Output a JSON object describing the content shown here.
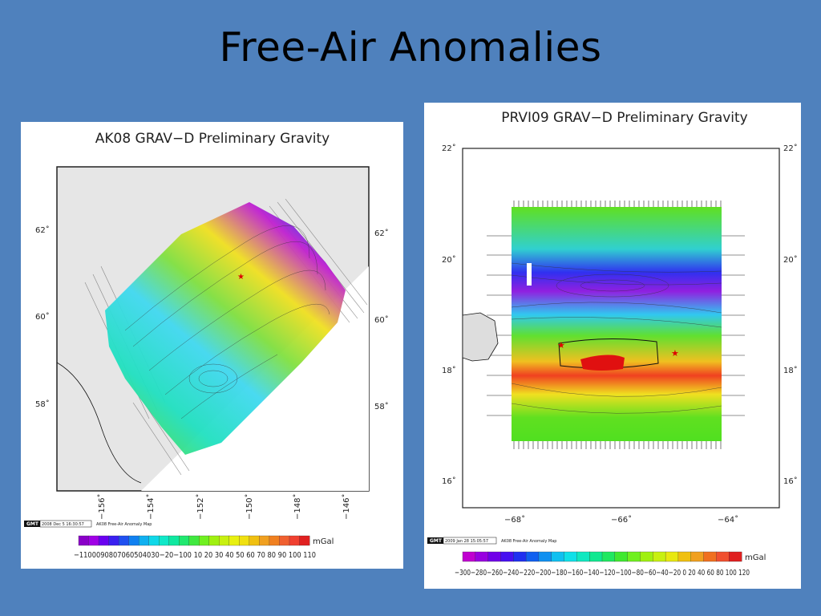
{
  "slide": {
    "title": "Free-Air Anomalies"
  },
  "ak08": {
    "title": "AK08 GRAV−D Preliminary Gravity",
    "lat_ticks": [
      "62˚",
      "60˚",
      "58˚"
    ],
    "lon_ticks": [
      "−156˚",
      "−154˚",
      "−152˚",
      "−150˚",
      "−148˚",
      "−146˚"
    ],
    "gmt_logo": "GMT",
    "timestamp": "2008 Dec 5 16:30:57",
    "map_label": "AK08 Free-Air Anomaly Map",
    "colorbar_unit": "mGal",
    "colorbar_labels": "−1100090807060504030−20−100 10 20 30 40 50 60 70 80 90 100 110",
    "colorbar_colors": [
      "#8a00c8",
      "#a000e6",
      "#6a00f0",
      "#3a20f0",
      "#2050f0",
      "#1080f0",
      "#10b0f0",
      "#10d8e8",
      "#10e8c8",
      "#10e8a0",
      "#20e870",
      "#40e840",
      "#70f020",
      "#a0f010",
      "#c8f010",
      "#e8f010",
      "#f0e010",
      "#f0c010",
      "#f0a020",
      "#f08020",
      "#f06030",
      "#f04030",
      "#e02020"
    ]
  },
  "prvi09": {
    "title": "PRVI09 GRAV−D Preliminary Gravity",
    "lat_ticks": [
      "22˚",
      "20˚",
      "18˚",
      "16˚"
    ],
    "lon_ticks": [
      "−68˚",
      "−66˚",
      "−64˚"
    ],
    "gmt_logo": "GMT",
    "timestamp": "2009 Jan 28 15:05:57",
    "map_label": "AK08 Free-Air Anomaly Map",
    "colorbar_unit": "mGal",
    "colorbar_labels": "−300−280−260−240−220−200−180−160−140−120−100−80−60−40−20 0 20 40 60 80 100 120",
    "colorbar_colors": [
      "#c000d0",
      "#9800e0",
      "#7000e8",
      "#4810f0",
      "#2030f0",
      "#1060f0",
      "#1090f0",
      "#10c0f0",
      "#10e0e8",
      "#10e8c0",
      "#10e890",
      "#20e860",
      "#40e830",
      "#70f020",
      "#a0f010",
      "#c8f010",
      "#e8e810",
      "#f0c010",
      "#f0a020",
      "#f07020",
      "#f05030",
      "#e02020"
    ]
  }
}
